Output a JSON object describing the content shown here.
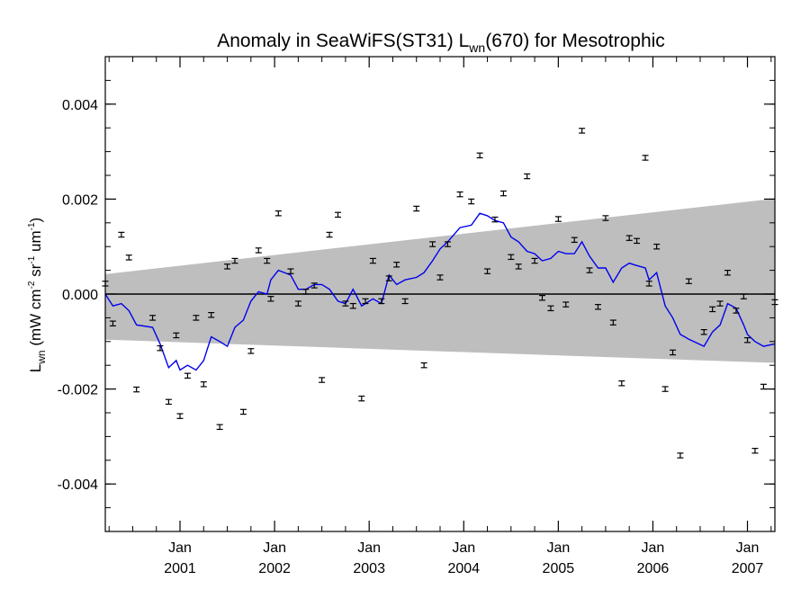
{
  "chart_data": {
    "type": "scatter",
    "title": {
      "prefix": "Anomaly in SeaWiFS(ST31) L",
      "subscript": "wn",
      "suffix": "(670) for Mesotrophic"
    },
    "ylabel": {
      "main": "L",
      "sub": "wn",
      "units_open": " (mW cm",
      "exp1": "-2",
      "mid1": " sr",
      "exp2": "-1",
      "mid2": " um",
      "exp3": "-1",
      "units_close": ")"
    },
    "xlabel": "",
    "x_unit": "decimal year",
    "xlim": [
      2000.21,
      2007.29
    ],
    "ylim": [
      -0.005,
      0.005
    ],
    "y_ticks": [
      {
        "value": 0.004,
        "label": "0.004"
      },
      {
        "value": 0.002,
        "label": "0.002"
      },
      {
        "value": 0.0,
        "label": "0.000"
      },
      {
        "value": -0.002,
        "label": "-0.002"
      },
      {
        "value": -0.004,
        "label": "-0.004"
      }
    ],
    "x_ticks": [
      {
        "value": 2001.0,
        "month": "Jan",
        "year": "2001"
      },
      {
        "value": 2002.0,
        "month": "Jan",
        "year": "2002"
      },
      {
        "value": 2003.0,
        "month": "Jan",
        "year": "2003"
      },
      {
        "value": 2004.0,
        "month": "Jan",
        "year": "2004"
      },
      {
        "value": 2005.0,
        "month": "Jan",
        "year": "2005"
      },
      {
        "value": 2006.0,
        "month": "Jan",
        "year": "2006"
      },
      {
        "value": 2007.0,
        "month": "Jan",
        "year": "2007"
      }
    ],
    "uncertainty_band": {
      "x": [
        2000.21,
        2007.29
      ],
      "upper": [
        0.00042,
        0.00201
      ],
      "lower": [
        -0.00096,
        -0.00145
      ],
      "color": "#bebebe"
    },
    "zero_line": 0.0,
    "points": [
      {
        "x": 2000.21,
        "y": 0.00022
      },
      {
        "x": 2000.29,
        "y": -0.00062
      },
      {
        "x": 2000.38,
        "y": 0.00125
      },
      {
        "x": 2000.46,
        "y": 0.00077
      },
      {
        "x": 2000.54,
        "y": -0.00201
      },
      {
        "x": 2000.71,
        "y": -0.0005
      },
      {
        "x": 2000.79,
        "y": -0.00114
      },
      {
        "x": 2000.88,
        "y": -0.00227
      },
      {
        "x": 2000.96,
        "y": -0.00087
      },
      {
        "x": 2001.0,
        "y": -0.00257
      },
      {
        "x": 2001.08,
        "y": -0.00172
      },
      {
        "x": 2001.17,
        "y": -0.0005
      },
      {
        "x": 2001.25,
        "y": -0.0019
      },
      {
        "x": 2001.33,
        "y": -0.00044
      },
      {
        "x": 2001.42,
        "y": -0.0028
      },
      {
        "x": 2001.5,
        "y": 0.00058
      },
      {
        "x": 2001.58,
        "y": 0.0007
      },
      {
        "x": 2001.67,
        "y": -0.00248
      },
      {
        "x": 2001.75,
        "y": -0.0012
      },
      {
        "x": 2001.83,
        "y": 0.00092
      },
      {
        "x": 2001.92,
        "y": 0.0007
      },
      {
        "x": 2001.96,
        "y": -0.0001
      },
      {
        "x": 2002.04,
        "y": 0.0017
      },
      {
        "x": 2002.17,
        "y": 0.00048
      },
      {
        "x": 2002.25,
        "y": -0.0002
      },
      {
        "x": 2002.33,
        "y": 5e-05
      },
      {
        "x": 2002.42,
        "y": 0.00018
      },
      {
        "x": 2002.5,
        "y": -0.00181
      },
      {
        "x": 2002.58,
        "y": 0.00125
      },
      {
        "x": 2002.67,
        "y": 0.00167
      },
      {
        "x": 2002.75,
        "y": -0.0002
      },
      {
        "x": 2002.83,
        "y": -0.00025
      },
      {
        "x": 2002.92,
        "y": -0.0022
      },
      {
        "x": 2002.96,
        "y": -0.00015
      },
      {
        "x": 2003.04,
        "y": 0.0007
      },
      {
        "x": 2003.13,
        "y": -0.00015
      },
      {
        "x": 2003.21,
        "y": 0.00033
      },
      {
        "x": 2003.29,
        "y": 0.00062
      },
      {
        "x": 2003.38,
        "y": -0.00015
      },
      {
        "x": 2003.5,
        "y": 0.0018
      },
      {
        "x": 2003.58,
        "y": -0.0015
      },
      {
        "x": 2003.67,
        "y": 0.00105
      },
      {
        "x": 2003.75,
        "y": 0.00035
      },
      {
        "x": 2003.83,
        "y": 0.00105
      },
      {
        "x": 2003.96,
        "y": 0.0021
      },
      {
        "x": 2004.08,
        "y": 0.00195
      },
      {
        "x": 2004.17,
        "y": 0.00292
      },
      {
        "x": 2004.25,
        "y": 0.00048
      },
      {
        "x": 2004.33,
        "y": 0.00157
      },
      {
        "x": 2004.42,
        "y": 0.00212
      },
      {
        "x": 2004.5,
        "y": 0.00078
      },
      {
        "x": 2004.58,
        "y": 0.00058
      },
      {
        "x": 2004.67,
        "y": 0.00248
      },
      {
        "x": 2004.75,
        "y": 0.0007
      },
      {
        "x": 2004.83,
        "y": -8e-05
      },
      {
        "x": 2004.92,
        "y": -0.0003
      },
      {
        "x": 2005.0,
        "y": 0.00158
      },
      {
        "x": 2005.08,
        "y": -0.00022
      },
      {
        "x": 2005.17,
        "y": 0.00114
      },
      {
        "x": 2005.25,
        "y": 0.00344
      },
      {
        "x": 2005.33,
        "y": 0.0005
      },
      {
        "x": 2005.42,
        "y": -0.00027
      },
      {
        "x": 2005.5,
        "y": 0.0016
      },
      {
        "x": 2005.58,
        "y": -0.0006
      },
      {
        "x": 2005.67,
        "y": -0.00188
      },
      {
        "x": 2005.75,
        "y": 0.00118
      },
      {
        "x": 2005.83,
        "y": 0.00112
      },
      {
        "x": 2005.92,
        "y": 0.00287
      },
      {
        "x": 2005.96,
        "y": 0.00022
      },
      {
        "x": 2006.04,
        "y": 0.001
      },
      {
        "x": 2006.13,
        "y": -0.002
      },
      {
        "x": 2006.21,
        "y": -0.00123
      },
      {
        "x": 2006.29,
        "y": -0.0034
      },
      {
        "x": 2006.38,
        "y": 0.00027
      },
      {
        "x": 2006.54,
        "y": -0.0008
      },
      {
        "x": 2006.63,
        "y": -0.00032
      },
      {
        "x": 2006.71,
        "y": -0.0002
      },
      {
        "x": 2006.79,
        "y": 0.00045
      },
      {
        "x": 2006.88,
        "y": -0.00035
      },
      {
        "x": 2006.96,
        "y": -5e-05
      },
      {
        "x": 2007.0,
        "y": -0.00097
      },
      {
        "x": 2007.08,
        "y": -0.0033
      },
      {
        "x": 2007.17,
        "y": -0.00195
      },
      {
        "x": 2007.29,
        "y": -0.00017
      }
    ],
    "error_bar_half_width": 5e-05,
    "running_mean": {
      "color": "#0000ee",
      "x": [
        2000.21,
        2000.29,
        2000.38,
        2000.46,
        2000.54,
        2000.71,
        2000.79,
        2000.88,
        2000.96,
        2001.0,
        2001.08,
        2001.17,
        2001.25,
        2001.33,
        2001.42,
        2001.5,
        2001.58,
        2001.67,
        2001.75,
        2001.83,
        2001.92,
        2001.96,
        2002.04,
        2002.17,
        2002.25,
        2002.33,
        2002.42,
        2002.5,
        2002.58,
        2002.67,
        2002.75,
        2002.83,
        2002.92,
        2002.96,
        2003.04,
        2003.13,
        2003.21,
        2003.29,
        2003.38,
        2003.5,
        2003.58,
        2003.67,
        2003.75,
        2003.83,
        2003.96,
        2004.08,
        2004.17,
        2004.25,
        2004.33,
        2004.42,
        2004.5,
        2004.58,
        2004.67,
        2004.75,
        2004.83,
        2004.92,
        2005.0,
        2005.08,
        2005.17,
        2005.25,
        2005.33,
        2005.42,
        2005.5,
        2005.58,
        2005.67,
        2005.75,
        2005.83,
        2005.92,
        2005.96,
        2006.04,
        2006.13,
        2006.21,
        2006.29,
        2006.38,
        2006.54,
        2006.63,
        2006.71,
        2006.79,
        2006.88,
        2006.96,
        2007.0,
        2007.08,
        2007.17,
        2007.29
      ],
      "y": [
        0.0,
        -0.00025,
        -0.0002,
        -0.00035,
        -0.00065,
        -0.0007,
        -0.00105,
        -0.00155,
        -0.0014,
        -0.0016,
        -0.0015,
        -0.0016,
        -0.0014,
        -0.0009,
        -0.001,
        -0.0011,
        -0.0007,
        -0.00055,
        -0.00015,
        5e-05,
        0.0,
        0.0003,
        0.0005,
        0.0004,
        0.0001,
        0.0001,
        0.0002,
        0.0002,
        0.0001,
        -0.00015,
        -0.0002,
        0.0001,
        -0.00025,
        -0.0002,
        -0.0001,
        -0.0002,
        0.0004,
        0.0002,
        0.0003,
        0.00035,
        0.00045,
        0.0007,
        0.00095,
        0.0011,
        0.0014,
        0.00145,
        0.0017,
        0.00165,
        0.00155,
        0.0015,
        0.0012,
        0.0011,
        0.0009,
        0.00085,
        0.0007,
        0.00075,
        0.0009,
        0.00085,
        0.00085,
        0.0011,
        0.0008,
        0.00055,
        0.00055,
        0.00025,
        0.00055,
        0.00065,
        0.0006,
        0.00055,
        0.0003,
        0.00045,
        -0.00025,
        -0.0005,
        -0.00085,
        -0.00095,
        -0.0011,
        -0.0008,
        -0.00065,
        -0.0002,
        -0.0003,
        -0.00065,
        -0.00085,
        -0.001,
        -0.0011,
        -0.00105
      ]
    }
  }
}
